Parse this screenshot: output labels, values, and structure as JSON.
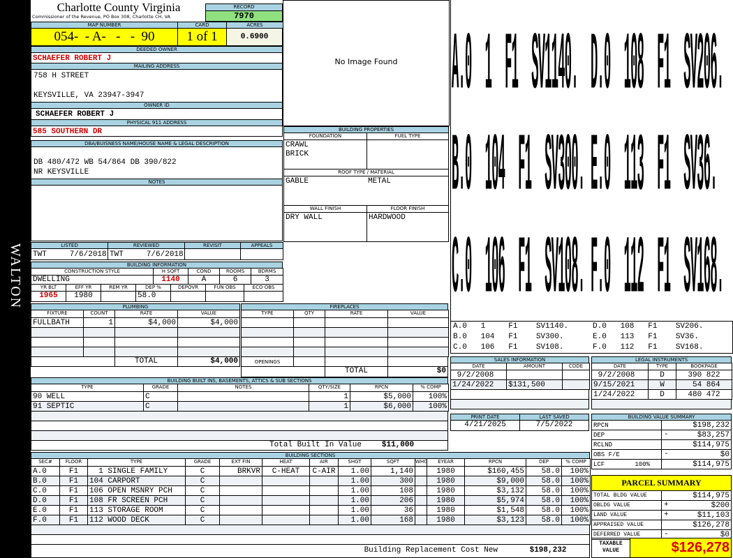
{
  "side_label": "WALTON",
  "header": {
    "title": "Charlotte County Virginia",
    "subtitle": "Commissioner of the Revenue, PO Box 308, Charlotte CH, VA",
    "record_label": "RECORD",
    "record": "7970",
    "map_label": "MAP NUMBER",
    "map_number": "054-  - A-   -   -  90",
    "card_label": "CARD",
    "card": "1 of 1",
    "acres_label": "ACRES",
    "acres": "0.6900"
  },
  "owner": {
    "deeded_label": "DEEDED OWNER",
    "deeded": "SCHAEFER ROBERT J",
    "mailing_label": "MAILING ADDRESS",
    "mailing_line1": "758 H STREET",
    "mailing_line2": "KEYSVILLE, VA 23947-3947",
    "owner_id_label": "OWNER ID",
    "owner_id": "SCHAEFER ROBERT J",
    "physical_label": "PHYSICAL 911 ADDRESS",
    "physical": "585 SOUTHERN DR"
  },
  "dba": {
    "label": "DBA/BUISNESS NAME/HOUSE NAME & LEGAL DESCRIPTION",
    "line1": "DB 480/472 WB 54/864 DB 390/822",
    "line2": "NR KEYSVILLE",
    "notes_label": "NOTES"
  },
  "listing": {
    "labels": [
      "LISTED",
      "REVIEWED",
      "REVISIT",
      "APPEALS"
    ],
    "listed": "TWT     7/6/2018",
    "reviewed": "TWT     7/6/2018",
    "revisit": "",
    "appeals": ""
  },
  "building_info": {
    "title": "BUILDING INFORMATION",
    "headers1": [
      "CONSTRUCTION STYLE",
      "H SQFT",
      "COND",
      "ROOMS",
      "BDRMS"
    ],
    "values1": [
      "DWELLING",
      "1140",
      "A",
      "6",
      "3"
    ],
    "headers2": [
      "YR BLT",
      "EFF YR",
      "REM YR",
      "DEP %",
      "DEPOVR",
      "FUN OBS",
      "ECO OBS"
    ],
    "values2": [
      "1965",
      "1980",
      "",
      "58.0",
      "",
      "",
      ""
    ]
  },
  "plumbing": {
    "title": "PLUMBING",
    "headers": [
      "FIXTURE",
      "COUNT",
      "RATE",
      "VALUE"
    ],
    "rows": [
      [
        "FULLBATH",
        "1",
        "$4,000",
        "$4,000"
      ]
    ],
    "total_label": "TOTAL",
    "total": "$4,000"
  },
  "fireplaces": {
    "title": "FIREPLACES",
    "headers": [
      "TYPE",
      "QTY",
      "RATE",
      "VALUE"
    ],
    "openings_label": "OPENINGS",
    "total_label": "TOTAL",
    "total": "$0"
  },
  "builtins": {
    "title": "BUILDING BUILT INS, BASEMENTS, ATTICS & SUB SECTIONS",
    "headers": [
      "TYPE",
      "GRADE",
      "NOTES",
      "QTY/SIZE",
      "RPCN",
      "% COMP"
    ],
    "rows": [
      [
        "90 WELL",
        "C",
        "",
        "1",
        "$5,000",
        "100%"
      ],
      [
        "91 SEPTIC",
        "C",
        "",
        "1",
        "$6,000",
        "100%"
      ]
    ],
    "total_label": "Total Built In Value",
    "total": "$11,000"
  },
  "sections": {
    "title": "BUILDING SECTIONS",
    "headers": [
      "SEC#",
      "FLOOR",
      "TYPE",
      "GRADE",
      "EXT FIN",
      "HEAT",
      "AIR",
      "SHGT",
      "SQFT",
      "WHGT",
      "EYEAR",
      "RPCN",
      "DEP",
      "% COMP"
    ],
    "rows": [
      [
        "A.0",
        "F1",
        "  1 SINGLE FAMILY",
        "C",
        "BRKVR",
        "C-HEAT",
        "C-AIR",
        "1.00",
        "1,140",
        "",
        "1980",
        "$160,455",
        "58.0",
        "100%"
      ],
      [
        "B.0",
        "F1",
        "104 CARPORT",
        "C",
        "",
        "",
        "",
        "1.00",
        "300",
        "",
        "1980",
        "$9,000",
        "58.0",
        "100%"
      ],
      [
        "C.0",
        "F1",
        "106 OPEN MSNRY PCH",
        "C",
        "",
        "",
        "",
        "1.00",
        "108",
        "",
        "1980",
        "$3,132",
        "58.0",
        "100%"
      ],
      [
        "D.0",
        "F1",
        "108 FR SCREEN PCH",
        "C",
        "",
        "",
        "",
        "1.00",
        "206",
        "",
        "1980",
        "$5,974",
        "58.0",
        "100%"
      ],
      [
        "E.0",
        "F1",
        "113 STORAGE ROOM",
        "C",
        "",
        "",
        "",
        "1.00",
        "36",
        "",
        "1980",
        "$1,548",
        "58.0",
        "100%"
      ],
      [
        "F.0",
        "F1",
        "112 WOOD DECK",
        "C",
        "",
        "",
        "",
        "1.00",
        "168",
        "",
        "1980",
        "$3,123",
        "58.0",
        "100%"
      ]
    ],
    "total_label": "Building Replacement Cost New",
    "total": "$198,232"
  },
  "image": {
    "no_image": "No Image Found"
  },
  "props": {
    "title": "BUILDING PROPERTIES",
    "foundation_label": "FOUNDATION",
    "foundation1": "CRAWL",
    "foundation2": "BRICK",
    "fuel_label": "FUEL TYPE",
    "roof_label": "ROOF TYPE / MATERIAL",
    "roof_type": "GABLE",
    "roof_material": "METAL",
    "wall_label": "WALL FINISH",
    "wall": "DRY WALL",
    "floor_label": "FLOOR FINISH",
    "floor": "HARDWOOD"
  },
  "sketch": {
    "labels": [
      "A.0  1  F1  SV1140.",
      "D.0  108  F1  SV206.",
      "B.0  104  F1  SV300.",
      "E.0  113  F1  SV36.",
      "C.0  106  F1  SV108.",
      "F.0  112  F1  SV168."
    ],
    "legend": [
      "A.0   1     F1    SV1140.",
      "D.0   108   F1    SV206.",
      "B.0   104   F1    SV300.",
      "E.0   113   F1    SV36.",
      "C.0   106   F1    SV108.",
      "F.0   112   F1    SV168."
    ]
  },
  "sales": {
    "title": "SALES INFORMATION",
    "headers": [
      "DATE",
      "AMOUNT",
      "CODE"
    ],
    "rows": [
      [
        " 9/2/2008",
        "",
        ""
      ],
      [
        "1/24/2022",
        "$131,500",
        ""
      ]
    ]
  },
  "legal": {
    "title": "LEGAL INSTRUMENTS",
    "headers": [
      "DATE",
      "TYPE",
      "BOOKPAGE"
    ],
    "rows": [
      [
        " 9/2/2008",
        "D",
        "390 822"
      ],
      [
        "9/15/2021",
        "W",
        " 54 864"
      ],
      [
        "1/24/2022",
        "D",
        "480 472"
      ]
    ]
  },
  "dates": {
    "print_label": "PRINT DATE",
    "print": "4/21/2025",
    "saved_label": "LAST SAVED",
    "saved": "7/5/2022"
  },
  "bvs": {
    "title": "BUILDING VALUE SUMMARY",
    "rows": [
      {
        "label": "RPCN",
        "sign": "",
        "value": "$198,232"
      },
      {
        "label": "DEP",
        "sign": "-",
        "value": "$83,257"
      },
      {
        "label": "RCLND",
        "sign": "",
        "value": "$114,975"
      },
      {
        "label": "OBS F/E",
        "sign": "-",
        "value": "$0"
      },
      {
        "label": "LCF        100%",
        "sign": "",
        "value": "$114,975"
      }
    ]
  },
  "parcel": {
    "title": "PARCEL SUMMARY",
    "rows": [
      {
        "label": "TOTAL BLDG VALUE",
        "sign": "",
        "value": "$114,975"
      },
      {
        "label": "OBLDG VALUE",
        "sign": "+",
        "value": "$200"
      },
      {
        "label": "LAND VALUE",
        "sign": "+",
        "value": "$11,103"
      },
      {
        "label": "APPRAISED VALUE",
        "sign": "",
        "value": "$126,278"
      },
      {
        "label": "DEFERRED VALUE",
        "sign": "-",
        "value": "$0"
      }
    ],
    "taxable_label": "TAXABLE\nVALUE",
    "taxable": "$126,278"
  },
  "colors": {
    "header_bar": "#a9d3e3",
    "highlight": "#ffff00",
    "record": "#90e080",
    "owner_text": "#d00000"
  }
}
